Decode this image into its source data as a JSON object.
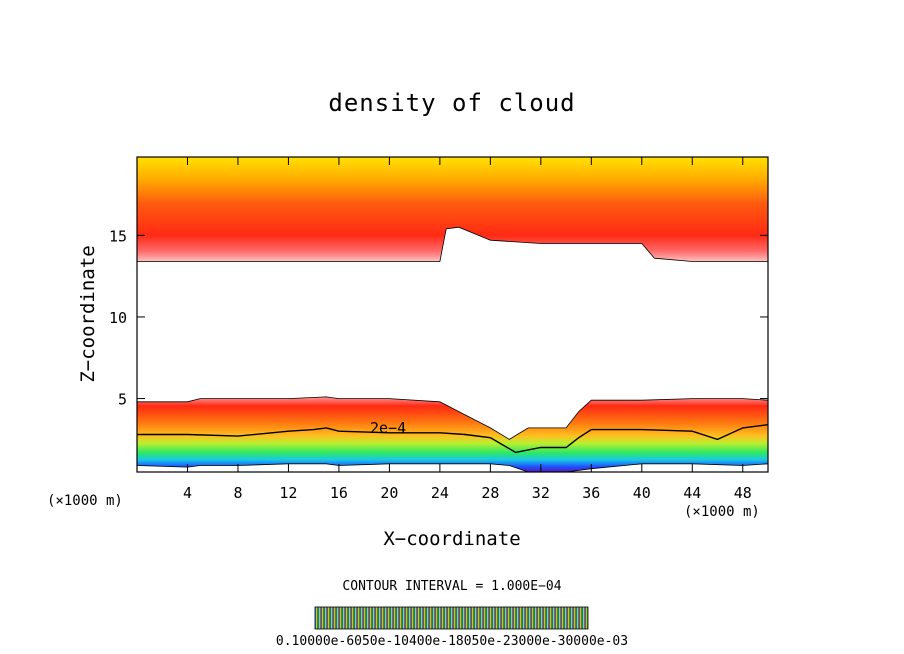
{
  "chart_data": {
    "type": "heatmap",
    "title": "density of cloud",
    "xlabel": "X−coordinate",
    "ylabel": "Z−coordinate",
    "x_unit_left": "(×1000 m)",
    "x_unit_right": "(×1000 m)",
    "xlim": [
      0,
      50
    ],
    "ylim": [
      0.5,
      19.8
    ],
    "xticks": [
      4,
      8,
      12,
      16,
      20,
      24,
      28,
      32,
      36,
      40,
      44,
      48
    ],
    "xtick_labels": [
      "4",
      "8",
      "12",
      "16",
      "20",
      "24",
      "28",
      "32",
      "36",
      "40",
      "44",
      "48"
    ],
    "yticks": [
      5,
      10,
      15
    ],
    "ytick_labels": [
      "5",
      "10",
      "15"
    ],
    "contour_label": "2e−4",
    "contour_interval_text": "CONTOUR INTERVAL = 1.000E−04",
    "colorbar_labels_text": "0.10000e-6050e-10400e-18050e-23000e-30000e-03",
    "colormap": [
      "#2a003a",
      "#3b1ea8",
      "#1f6fff",
      "#18c8e8",
      "#20e07a",
      "#3fe84f",
      "#b8f030",
      "#f4f020",
      "#ffc018",
      "#ff8a14",
      "#ff3a10",
      "#ff1010"
    ],
    "layers": [
      {
        "name": "upper cloud layer",
        "x": [
          0,
          4,
          8,
          12,
          16,
          20,
          22,
          24,
          24.5,
          25.5,
          28,
          32,
          36,
          40,
          41,
          44,
          48,
          50
        ],
        "z_bottom": [
          13.4,
          13.4,
          13.4,
          13.4,
          13.4,
          13.4,
          13.4,
          13.4,
          15.4,
          15.5,
          14.7,
          14.5,
          14.5,
          14.5,
          13.6,
          13.4,
          13.4,
          13.4
        ],
        "z_top": [
          19.8,
          19.8,
          19.8,
          19.8,
          19.8,
          19.8,
          19.8,
          19.8,
          19.8,
          19.8,
          19.8,
          19.8,
          19.8,
          19.8,
          19.8,
          19.8,
          19.8,
          19.8
        ]
      },
      {
        "name": "lower cloud layer",
        "x": [
          0,
          4,
          5,
          8,
          12,
          15,
          16,
          20,
          24,
          26,
          28,
          29.5,
          31,
          34,
          35,
          36,
          40,
          44,
          48,
          50
        ],
        "z_bottom": [
          0.9,
          0.8,
          0.9,
          0.9,
          1.0,
          1.0,
          0.9,
          1.0,
          1.0,
          1.0,
          1.0,
          0.9,
          0.5,
          0.5,
          0.6,
          0.7,
          1.0,
          1.0,
          0.9,
          1.0
        ],
        "z_top": [
          4.8,
          4.8,
          5.0,
          5.0,
          5.0,
          5.1,
          5.0,
          5.0,
          4.8,
          4.0,
          3.2,
          2.5,
          3.2,
          3.2,
          4.2,
          4.9,
          4.9,
          5.0,
          5.0,
          4.9
        ]
      }
    ],
    "contour_2e-4": {
      "x": [
        0,
        4,
        8,
        12,
        14,
        15,
        16,
        20,
        24,
        26,
        28,
        30,
        32,
        34,
        35,
        36,
        40,
        44,
        46,
        48,
        50
      ],
      "z": [
        2.8,
        2.8,
        2.7,
        3.0,
        3.1,
        3.2,
        3.0,
        2.9,
        2.9,
        2.8,
        2.6,
        1.7,
        2.0,
        2.0,
        2.6,
        3.1,
        3.1,
        3.0,
        2.5,
        3.2,
        3.4
      ]
    }
  }
}
